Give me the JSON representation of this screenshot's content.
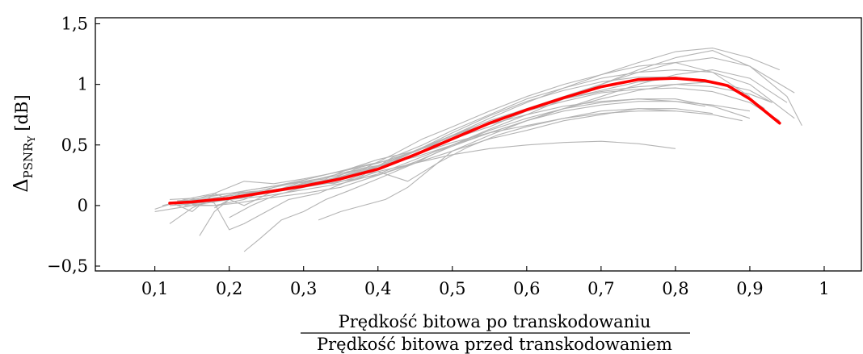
{
  "chart_data": {
    "type": "line",
    "title": "",
    "xlabel": {
      "numerator": "Prędkość bitowa po transkodowaniu",
      "denominator": "Prędkość bitowa przed transkodowaniem"
    },
    "ylabel": {
      "main": "Δ",
      "sub": "PSNR",
      "subsub": "Y",
      "unit": "[dB]"
    },
    "xlim": [
      0.02,
      1.05
    ],
    "ylim": [
      -0.54,
      1.55
    ],
    "grid": false,
    "decimal_separator": ",",
    "x_ticks": [
      {
        "value": 0.1,
        "label": "0,1"
      },
      {
        "value": 0.2,
        "label": "0,2"
      },
      {
        "value": 0.3,
        "label": "0,3"
      },
      {
        "value": 0.4,
        "label": "0,4"
      },
      {
        "value": 0.5,
        "label": "0,5"
      },
      {
        "value": 0.6,
        "label": "0,6"
      },
      {
        "value": 0.7,
        "label": "0,7"
      },
      {
        "value": 0.8,
        "label": "0,8"
      },
      {
        "value": 0.9,
        "label": "0,9"
      },
      {
        "value": 1.0,
        "label": "1"
      }
    ],
    "y_ticks": [
      {
        "value": -0.5,
        "label": "−0,5"
      },
      {
        "value": 0,
        "label": "0"
      },
      {
        "value": 0.5,
        "label": "0,5"
      },
      {
        "value": 1,
        "label": "1"
      },
      {
        "value": 1.5,
        "label": "1,5"
      }
    ],
    "colors": {
      "mean": "#ff0000",
      "samples": "#b4b4b4",
      "axis": "#000000"
    },
    "mean_series": {
      "x": [
        0.12,
        0.15,
        0.2,
        0.25,
        0.3,
        0.35,
        0.4,
        0.45,
        0.5,
        0.55,
        0.6,
        0.65,
        0.7,
        0.75,
        0.8,
        0.84,
        0.87,
        0.9,
        0.94
      ],
      "y": [
        0.02,
        0.03,
        0.06,
        0.11,
        0.16,
        0.22,
        0.3,
        0.42,
        0.55,
        0.68,
        0.79,
        0.89,
        0.98,
        1.04,
        1.05,
        1.03,
        0.99,
        0.88,
        0.68
      ]
    },
    "sample_series": [
      {
        "x": [
          0.1,
          0.14,
          0.18,
          0.22,
          0.26,
          0.3,
          0.35,
          0.4,
          0.45,
          0.5,
          0.55,
          0.6,
          0.65,
          0.7,
          0.75,
          0.8,
          0.85,
          0.9,
          0.94
        ],
        "y": [
          -0.03,
          0.05,
          0.1,
          0.2,
          0.18,
          0.22,
          0.28,
          0.35,
          0.45,
          0.58,
          0.72,
          0.85,
          0.97,
          1.08,
          1.18,
          1.27,
          1.3,
          1.22,
          1.12
        ]
      },
      {
        "x": [
          0.12,
          0.15,
          0.18,
          0.22,
          0.26,
          0.3,
          0.35,
          0.4,
          0.45,
          0.5,
          0.55,
          0.6,
          0.65,
          0.7,
          0.75,
          0.8,
          0.85,
          0.9,
          0.96
        ],
        "y": [
          0.03,
          -0.05,
          0.1,
          0.0,
          0.12,
          0.18,
          0.22,
          0.3,
          0.43,
          0.55,
          0.68,
          0.8,
          0.9,
          1.0,
          1.1,
          1.18,
          1.22,
          1.15,
          0.93
        ]
      },
      {
        "x": [
          0.13,
          0.17,
          0.2,
          0.25,
          0.3,
          0.35,
          0.4,
          0.45,
          0.5,
          0.55,
          0.6,
          0.65,
          0.7,
          0.75,
          0.8,
          0.85,
          0.9
        ],
        "y": [
          0.0,
          0.03,
          0.05,
          0.08,
          0.13,
          0.18,
          0.26,
          0.38,
          0.5,
          0.62,
          0.72,
          0.8,
          0.85,
          0.88,
          0.88,
          0.82,
          0.72
        ]
      },
      {
        "x": [
          0.14,
          0.17,
          0.2,
          0.24,
          0.28,
          0.32,
          0.36,
          0.4,
          0.44,
          0.48,
          0.52,
          0.56,
          0.6,
          0.65,
          0.7,
          0.75,
          0.8
        ],
        "y": [
          0.02,
          0.08,
          0.1,
          0.12,
          0.18,
          0.2,
          0.24,
          0.28,
          0.2,
          0.35,
          0.48,
          0.58,
          0.65,
          0.72,
          0.78,
          0.8,
          0.78
        ]
      },
      {
        "x": [
          0.15,
          0.18,
          0.21,
          0.25,
          0.3,
          0.35,
          0.4,
          0.45,
          0.5,
          0.55,
          0.6,
          0.65,
          0.7,
          0.75,
          0.8,
          0.85,
          0.9,
          0.95
        ],
        "y": [
          0.01,
          0.0,
          0.02,
          0.06,
          0.1,
          0.15,
          0.25,
          0.36,
          0.49,
          0.6,
          0.7,
          0.8,
          0.9,
          1.0,
          1.08,
          1.12,
          1.05,
          0.85
        ]
      },
      {
        "x": [
          0.12,
          0.15,
          0.18,
          0.2,
          0.22,
          0.25,
          0.28,
          0.32,
          0.36,
          0.4,
          0.45,
          0.5,
          0.55,
          0.6,
          0.65,
          0.7,
          0.75,
          0.8,
          0.85
        ],
        "y": [
          0.05,
          0.06,
          0.02,
          -0.2,
          -0.15,
          -0.05,
          0.05,
          0.1,
          0.2,
          0.28,
          0.35,
          0.45,
          0.55,
          0.62,
          0.7,
          0.75,
          0.8,
          0.8,
          0.76
        ]
      },
      {
        "x": [
          0.16,
          0.18,
          0.2,
          0.22,
          0.25,
          0.28,
          0.3,
          0.33,
          0.36,
          0.4,
          0.45,
          0.5,
          0.55,
          0.6,
          0.65,
          0.7,
          0.75,
          0.8,
          0.86
        ],
        "y": [
          -0.25,
          -0.05,
          0.05,
          0.12,
          0.15,
          0.18,
          0.2,
          0.22,
          0.3,
          0.38,
          0.45,
          0.55,
          0.65,
          0.78,
          0.88,
          0.95,
          1.02,
          1.05,
          1.0
        ]
      },
      {
        "x": [
          0.22,
          0.24,
          0.27,
          0.3,
          0.33,
          0.36,
          0.4,
          0.45,
          0.5,
          0.55,
          0.6,
          0.65,
          0.7,
          0.75,
          0.8,
          0.85,
          0.9,
          0.95,
          0.97
        ],
        "y": [
          -0.38,
          -0.28,
          -0.12,
          -0.05,
          0.05,
          0.12,
          0.22,
          0.35,
          0.5,
          0.63,
          0.75,
          0.88,
          1.0,
          1.12,
          1.22,
          1.28,
          1.15,
          0.9,
          0.66
        ]
      },
      {
        "x": [
          0.32,
          0.35,
          0.38,
          0.41,
          0.44,
          0.47,
          0.5,
          0.55,
          0.6,
          0.65,
          0.7,
          0.75,
          0.8,
          0.85,
          0.9,
          0.93
        ],
        "y": [
          -0.12,
          -0.05,
          0.0,
          0.05,
          0.15,
          0.3,
          0.45,
          0.58,
          0.7,
          0.8,
          0.88,
          0.95,
          1.0,
          1.02,
          0.95,
          0.85
        ]
      },
      {
        "x": [
          0.1,
          0.15,
          0.2,
          0.25,
          0.3,
          0.35,
          0.4,
          0.45,
          0.5,
          0.55,
          0.6,
          0.65,
          0.7,
          0.75,
          0.8
        ],
        "y": [
          -0.05,
          0.0,
          0.05,
          0.1,
          0.15,
          0.2,
          0.25,
          0.35,
          0.42,
          0.47,
          0.5,
          0.52,
          0.53,
          0.51,
          0.47
        ]
      },
      {
        "x": [
          0.13,
          0.16,
          0.2,
          0.25,
          0.3,
          0.35,
          0.4,
          0.45,
          0.5,
          0.55,
          0.6,
          0.65,
          0.7,
          0.75,
          0.8,
          0.85,
          0.9,
          0.93
        ],
        "y": [
          0.04,
          0.05,
          0.08,
          0.12,
          0.17,
          0.24,
          0.33,
          0.45,
          0.58,
          0.7,
          0.8,
          0.88,
          0.94,
          0.98,
          1.0,
          0.98,
          0.92,
          0.85
        ]
      },
      {
        "x": [
          0.14,
          0.18,
          0.22,
          0.26,
          0.3,
          0.34,
          0.38,
          0.42,
          0.46,
          0.5,
          0.55,
          0.6,
          0.65,
          0.7,
          0.75,
          0.8,
          0.85,
          0.9,
          0.96
        ],
        "y": [
          0.0,
          0.0,
          0.05,
          0.15,
          0.2,
          0.18,
          0.25,
          0.4,
          0.5,
          0.62,
          0.75,
          0.88,
          0.97,
          1.05,
          1.1,
          1.12,
          1.1,
          1.0,
          0.72
        ]
      },
      {
        "x": [
          0.12,
          0.16,
          0.2,
          0.24,
          0.28,
          0.32,
          0.36,
          0.4,
          0.45,
          0.5,
          0.55,
          0.6,
          0.65,
          0.7,
          0.75,
          0.8,
          0.85,
          0.89
        ],
        "y": [
          0.0,
          0.02,
          0.06,
          0.1,
          0.14,
          0.19,
          0.25,
          0.32,
          0.42,
          0.52,
          0.6,
          0.66,
          0.72,
          0.76,
          0.78,
          0.78,
          0.75,
          0.7
        ]
      },
      {
        "x": [
          0.18,
          0.2,
          0.23,
          0.26,
          0.3,
          0.34,
          0.38,
          0.42,
          0.46,
          0.5,
          0.55,
          0.6,
          0.65,
          0.7,
          0.75,
          0.8,
          0.85,
          0.9
        ],
        "y": [
          -0.02,
          0.05,
          0.1,
          0.12,
          0.2,
          0.24,
          0.3,
          0.42,
          0.55,
          0.65,
          0.78,
          0.9,
          1.0,
          1.08,
          1.15,
          1.18,
          1.1,
          0.9
        ]
      },
      {
        "x": [
          0.11,
          0.14,
          0.18,
          0.22,
          0.26,
          0.3,
          0.34,
          0.38,
          0.42,
          0.46,
          0.5,
          0.55,
          0.6,
          0.65,
          0.7,
          0.75,
          0.8,
          0.84
        ],
        "y": [
          0.0,
          0.04,
          0.08,
          0.12,
          0.16,
          0.21,
          0.27,
          0.33,
          0.38,
          0.48,
          0.58,
          0.67,
          0.75,
          0.82,
          0.86,
          0.88,
          0.86,
          0.82
        ]
      },
      {
        "x": [
          0.2,
          0.23,
          0.26,
          0.3,
          0.34,
          0.38,
          0.42,
          0.46,
          0.5,
          0.55,
          0.6,
          0.65,
          0.7,
          0.75,
          0.8,
          0.85,
          0.88,
          0.92
        ],
        "y": [
          -0.1,
          0.0,
          0.08,
          0.15,
          0.22,
          0.28,
          0.36,
          0.48,
          0.6,
          0.74,
          0.86,
          0.95,
          1.02,
          1.06,
          1.06,
          1.02,
          0.96,
          0.8
        ]
      },
      {
        "x": [
          0.12,
          0.15,
          0.18,
          0.21,
          0.25,
          0.29,
          0.33,
          0.37,
          0.41,
          0.45,
          0.5,
          0.55,
          0.6,
          0.65,
          0.7,
          0.75,
          0.8,
          0.85,
          0.9
        ],
        "y": [
          -0.15,
          -0.02,
          0.06,
          0.1,
          0.12,
          0.16,
          0.2,
          0.3,
          0.34,
          0.4,
          0.5,
          0.6,
          0.7,
          0.78,
          0.83,
          0.86,
          0.86,
          0.83,
          0.78
        ]
      },
      {
        "x": [
          0.15,
          0.18,
          0.21,
          0.24,
          0.28,
          0.32,
          0.36,
          0.4,
          0.44,
          0.48,
          0.52,
          0.56,
          0.6,
          0.65,
          0.7,
          0.75,
          0.8,
          0.85,
          0.9,
          0.94
        ],
        "y": [
          0.02,
          0.04,
          0.08,
          0.1,
          0.15,
          0.22,
          0.28,
          0.32,
          0.42,
          0.52,
          0.62,
          0.7,
          0.78,
          0.86,
          0.93,
          0.96,
          0.97,
          0.94,
          0.85,
          0.7
        ]
      }
    ]
  }
}
